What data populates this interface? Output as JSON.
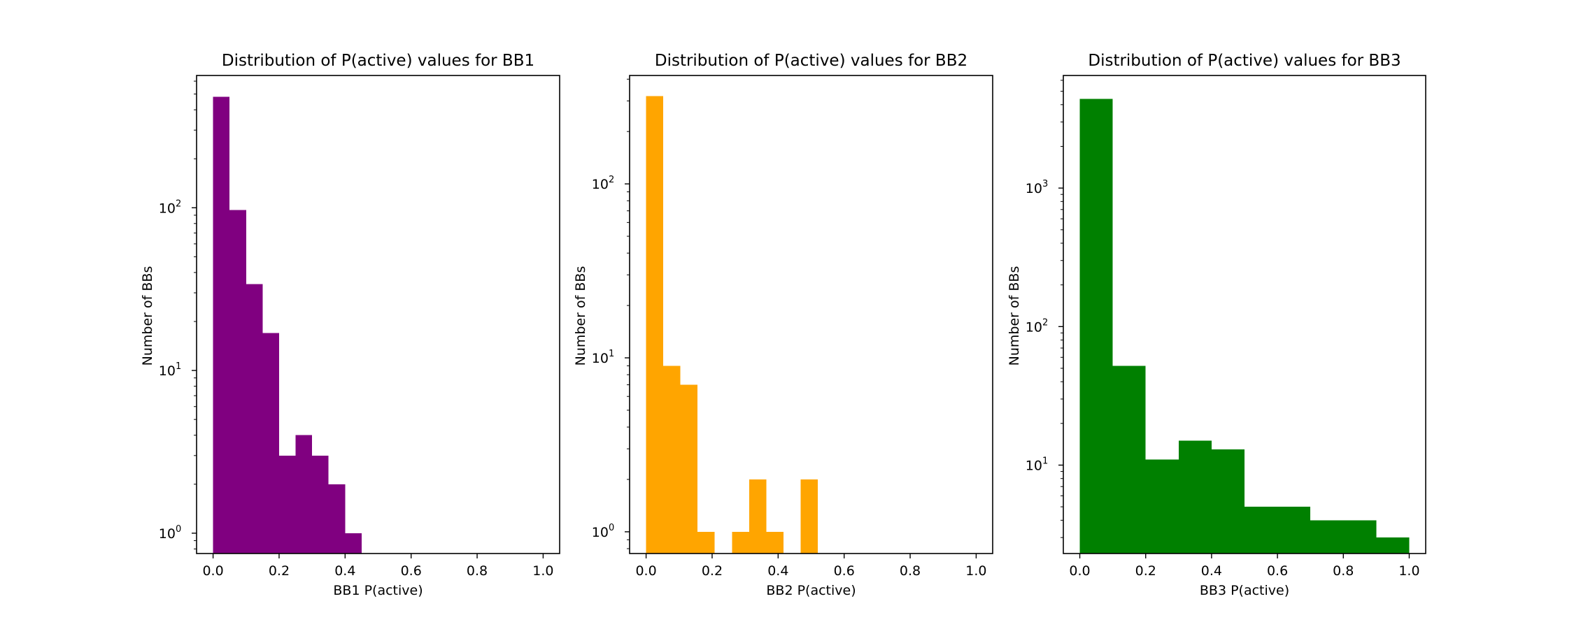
{
  "chart_data": [
    {
      "type": "bar",
      "title": "Distribution of P(active) values for BB1",
      "xlabel": "BB1 P(active)",
      "ylabel": "Number of BBs",
      "color": "#800080",
      "yscale": "log",
      "xlim": [
        -0.05,
        1.05
      ],
      "ylim": [
        0.75,
        650
      ],
      "xticks": [
        "0.0",
        "0.2",
        "0.4",
        "0.6",
        "0.8",
        "1.0"
      ],
      "yticks": [
        {
          "base": "10",
          "exp": "0",
          "value": 1
        },
        {
          "base": "10",
          "exp": "1",
          "value": 10
        },
        {
          "base": "10",
          "exp": "2",
          "value": 100
        }
      ],
      "bin_edges": [
        0.0,
        0.05,
        0.1,
        0.15,
        0.2,
        0.25,
        0.3,
        0.35,
        0.4,
        0.45,
        0.5,
        0.55,
        0.6,
        0.65,
        0.7,
        0.75,
        0.8,
        0.85,
        0.9,
        0.95,
        1.0
      ],
      "counts": [
        480,
        97,
        34,
        17,
        3,
        4,
        3,
        2,
        1,
        0,
        0,
        0,
        0,
        0,
        0,
        0,
        0,
        0,
        0,
        0
      ],
      "grid": false
    },
    {
      "type": "bar",
      "title": "Distribution of P(active) values for BB2",
      "xlabel": "BB2 P(active)",
      "ylabel": "Number of BBs",
      "color": "#FFA500",
      "yscale": "log",
      "xlim": [
        -0.05,
        1.05
      ],
      "ylim": [
        0.75,
        420
      ],
      "xticks": [
        "0.0",
        "0.2",
        "0.4",
        "0.6",
        "0.8",
        "1.0"
      ],
      "yticks": [
        {
          "base": "10",
          "exp": "0",
          "value": 1
        },
        {
          "base": "10",
          "exp": "1",
          "value": 10
        },
        {
          "base": "10",
          "exp": "2",
          "value": 100
        }
      ],
      "bin_edges": [
        0.0,
        0.052,
        0.104,
        0.156,
        0.208,
        0.26,
        0.312,
        0.364,
        0.416,
        0.468,
        0.52,
        0.572,
        0.624,
        0.676,
        0.728,
        0.78,
        0.832,
        0.884,
        0.936,
        0.988,
        1.0
      ],
      "counts": [
        320,
        9,
        7,
        1,
        0,
        1,
        2,
        1,
        0,
        2,
        0,
        0,
        0,
        0,
        0,
        0,
        0,
        0,
        0,
        0
      ],
      "grid": false
    },
    {
      "type": "bar",
      "title": "Distribution of P(active) values for BB3",
      "xlabel": "BB3 P(active)",
      "ylabel": "Number of BBs",
      "color": "#008000",
      "yscale": "log",
      "xlim": [
        -0.05,
        1.05
      ],
      "ylim": [
        2.3,
        6500
      ],
      "xticks": [
        "0.0",
        "0.2",
        "0.4",
        "0.6",
        "0.8",
        "1.0"
      ],
      "yticks": [
        {
          "base": "10",
          "exp": "1",
          "value": 10
        },
        {
          "base": "10",
          "exp": "2",
          "value": 100
        },
        {
          "base": "10",
          "exp": "3",
          "value": 1000
        }
      ],
      "bin_edges": [
        0.0,
        0.1,
        0.2,
        0.3,
        0.4,
        0.5,
        0.6,
        0.7,
        0.8,
        0.9,
        1.0
      ],
      "counts": [
        4400,
        52,
        11,
        15,
        13,
        5,
        5,
        4,
        4,
        3
      ],
      "grid": false
    }
  ]
}
